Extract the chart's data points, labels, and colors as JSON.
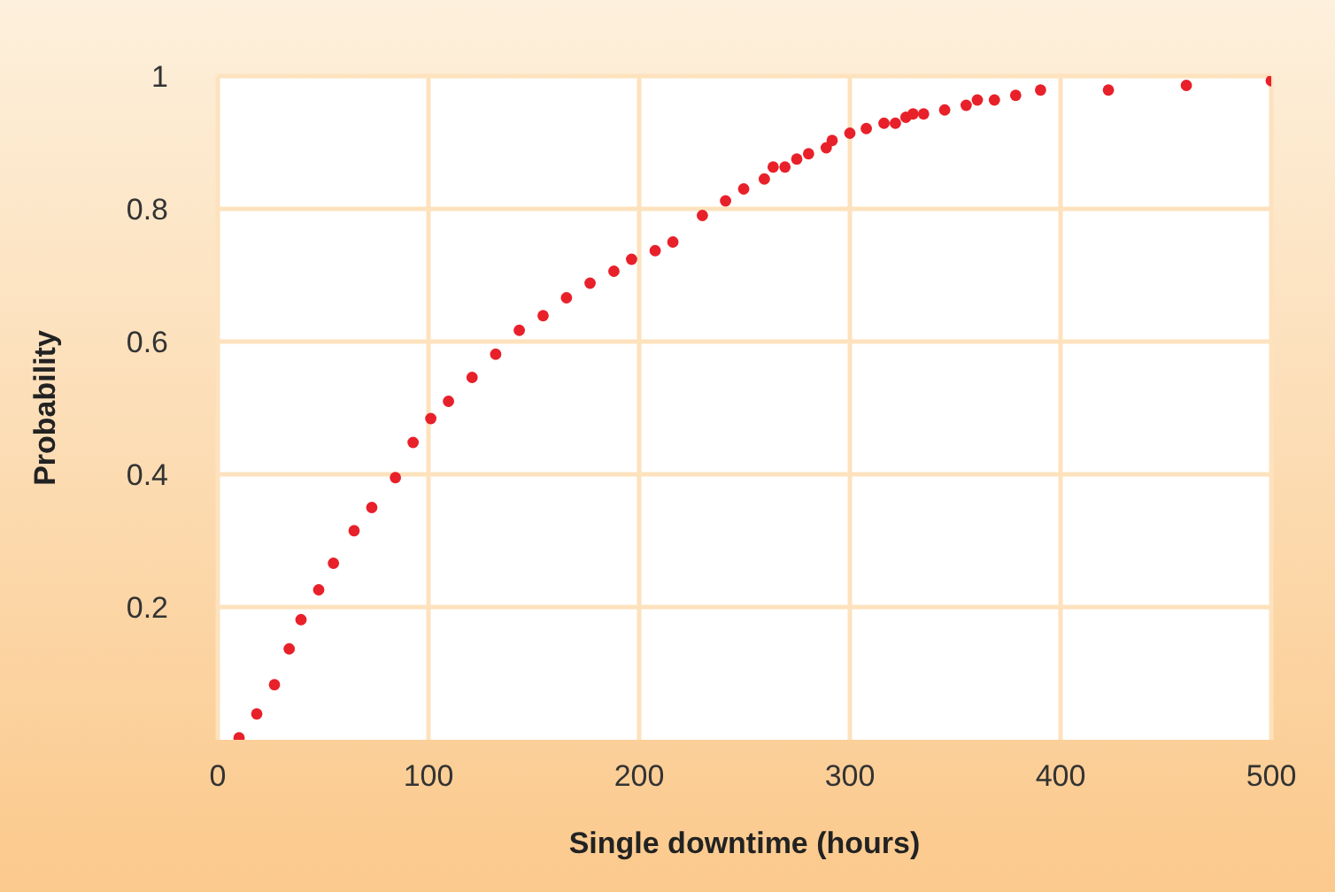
{
  "chart_data": {
    "type": "scatter",
    "xlabel": "Single downtime (hours)",
    "ylabel": "Probability",
    "x": [
      10.1,
      18.5,
      26.9,
      33.9,
      39.5,
      47.9,
      54.9,
      64.7,
      73.1,
      84.3,
      92.7,
      101.1,
      109.5,
      120.7,
      131.9,
      143.1,
      154.4,
      165.5,
      176.7,
      188,
      196.4,
      207.6,
      216,
      230,
      241,
      249.6,
      259.4,
      263.6,
      269.2,
      274.8,
      280.4,
      288.8,
      291.6,
      300,
      307.8,
      316.2,
      321.6,
      326.6,
      330,
      335,
      345,
      355.2,
      360.5,
      368.6,
      378.7,
      390.5,
      422.7,
      459.7,
      500
    ],
    "series": [
      {
        "color": "#e8202a",
        "values": [
          0.003,
          0.039,
          0.083,
          0.137,
          0.181,
          0.226,
          0.266,
          0.315,
          0.35,
          0.395,
          0.448,
          0.484,
          0.51,
          0.546,
          0.581,
          0.617,
          0.639,
          0.666,
          0.688,
          0.706,
          0.724,
          0.737,
          0.75,
          0.79,
          0.812,
          0.83,
          0.845,
          0.863,
          0.863,
          0.875,
          0.883,
          0.892,
          0.903,
          0.914,
          0.921,
          0.929,
          0.929,
          0.938,
          0.943,
          0.943,
          0.949,
          0.956,
          0.964,
          0.964,
          0.971,
          0.979,
          0.979,
          0.986,
          0.993
        ]
      }
    ],
    "xlim": [
      0,
      500
    ],
    "xticks": [
      0,
      100,
      200,
      300,
      400,
      500
    ],
    "ylim": [
      0,
      1
    ],
    "yticks": [
      0.2,
      0.4,
      0.6,
      0.8,
      1
    ],
    "grid": true,
    "marker": "circle"
  }
}
